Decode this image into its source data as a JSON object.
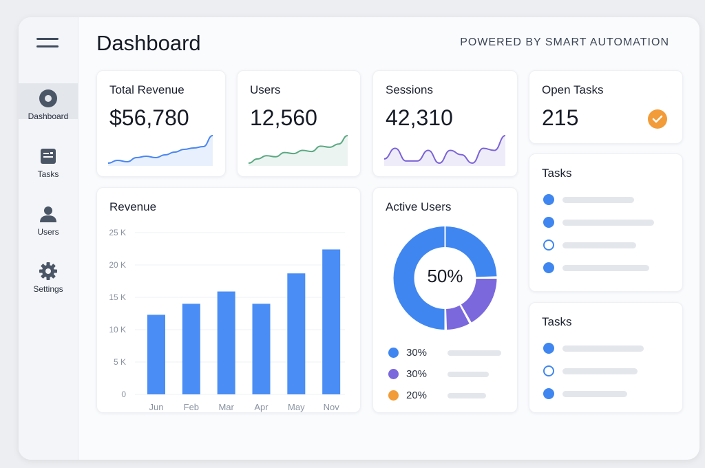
{
  "header": {
    "title": "Dashboard",
    "powered_by": "POWERED BY SMART AUTOMATION"
  },
  "sidebar": {
    "items": [
      {
        "label": "Dashboard",
        "icon": "dashboard-icon",
        "active": true
      },
      {
        "label": "Tasks",
        "icon": "tasks-icon",
        "active": false
      },
      {
        "label": "Users",
        "icon": "user-icon",
        "active": false
      },
      {
        "label": "Settings",
        "icon": "gear-icon",
        "active": false
      }
    ]
  },
  "stats": [
    {
      "title": "Total Revenue",
      "value": "$56,780",
      "color": "#4a86f0",
      "spark": [
        2,
        3,
        2.5,
        4,
        4.5,
        4,
        5,
        6,
        7,
        7.5,
        8,
        12
      ]
    },
    {
      "title": "Users",
      "value": "12,560",
      "color": "#5aa882",
      "spark": [
        1,
        3,
        4.5,
        4,
        6,
        5.5,
        7,
        6.5,
        9,
        8.5,
        10,
        14
      ]
    },
    {
      "title": "Sessions",
      "value": "42,310",
      "color": "#7a63d6",
      "spark": [
        4,
        9,
        3,
        3,
        8,
        2,
        8,
        6,
        2,
        9,
        8,
        15
      ]
    },
    {
      "title": "Open Tasks",
      "value": "215"
    }
  ],
  "colors": {
    "accent": "#4a8df4",
    "purple": "#7b68dd",
    "orange": "#f29b39"
  },
  "revenue": {
    "title": "Revenue"
  },
  "active_users": {
    "title": "Active Users",
    "center_label": "50%",
    "legend": [
      {
        "label": "30%",
        "color": "#3f86f0"
      },
      {
        "label": "30%",
        "color": "#7b68dd"
      },
      {
        "label": "20%",
        "color": "#f29b39"
      }
    ]
  },
  "tasks_1": {
    "title": "Tasks",
    "items": [
      {
        "done": true
      },
      {
        "done": true
      },
      {
        "done": false
      },
      {
        "done": true
      }
    ]
  },
  "tasks_2": {
    "title": "Tasks",
    "items": [
      {
        "done": true
      },
      {
        "done": false
      },
      {
        "done": true
      }
    ]
  },
  "chart_data": {
    "type": "bar",
    "title": "Revenue",
    "categories": [
      "Jun",
      "Feb",
      "Mar",
      "Apr",
      "May",
      "Nov"
    ],
    "values": [
      12.3,
      14,
      15.9,
      14,
      18.7,
      22.4
    ],
    "y_ticks": [
      "0",
      "5 K",
      "10 K",
      "15 K",
      "20 K",
      "25 K"
    ],
    "ylim": [
      0,
      25
    ],
    "grid": true,
    "unit": "K"
  }
}
